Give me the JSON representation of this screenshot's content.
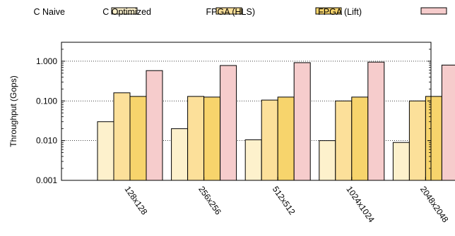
{
  "chart_data": {
    "type": "bar",
    "title": "",
    "xlabel": "",
    "ylabel": "Throughput (Gops)",
    "yscale": "log",
    "ylim": [
      0.001,
      3
    ],
    "yticks": [
      {
        "value": 0.001,
        "label": "0.001"
      },
      {
        "value": 0.01,
        "label": "0.010"
      },
      {
        "value": 0.1,
        "label": "0.100"
      },
      {
        "value": 1,
        "label": "1.000"
      }
    ],
    "grid": "horizontal dotted at major ticks",
    "legend_position": "top",
    "categories": [
      "128x128",
      "256x256",
      "512x512",
      "1024x1024",
      "2048x2048"
    ],
    "series": [
      {
        "name": "C Naive",
        "color": "#fdf1cc",
        "values": [
          0.03,
          0.02,
          0.0105,
          0.01,
          0.009
        ]
      },
      {
        "name": "C Optimized",
        "color": "#fce09a",
        "values": [
          0.16,
          0.13,
          0.105,
          0.1,
          0.1
        ]
      },
      {
        "name": "FPGA (HLS)",
        "color": "#f7d46c",
        "values": [
          0.13,
          0.125,
          0.125,
          0.125,
          0.13
        ]
      },
      {
        "name": "FPGA (Lift)",
        "color": "#f6cccc",
        "values": [
          0.58,
          0.78,
          0.92,
          0.95,
          0.8
        ]
      }
    ]
  }
}
